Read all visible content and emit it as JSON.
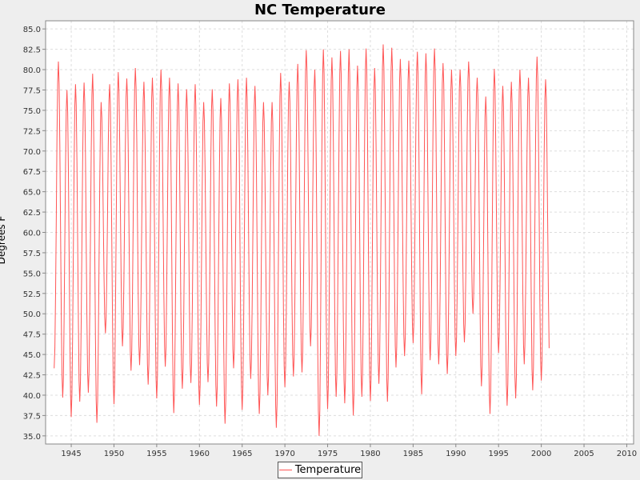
{
  "chart_data": {
    "type": "line",
    "title": "NC Temperature",
    "xlabel": "",
    "ylabel": "Degrees F",
    "xlim": [
      1942.0,
      2010.8
    ],
    "ylim": [
      34.0,
      86.0
    ],
    "x_ticks": [
      1945,
      1950,
      1955,
      1960,
      1965,
      1970,
      1975,
      1980,
      1985,
      1990,
      1995,
      2000,
      2005,
      2010
    ],
    "y_ticks": [
      35.0,
      37.5,
      40.0,
      42.5,
      45.0,
      47.5,
      50.0,
      52.5,
      55.0,
      57.5,
      60.0,
      62.5,
      65.0,
      67.5,
      70.0,
      72.5,
      75.0,
      77.5,
      80.0,
      82.5,
      85.0
    ],
    "grid": true,
    "legend_position": "bottom-center",
    "series": [
      {
        "name": "Temperature",
        "color": "#ff5555",
        "start_year": 1943,
        "peaks": [
          81.0,
          77.5,
          78.2,
          78.4,
          79.5,
          76.0,
          78.2,
          79.7,
          78.9,
          80.2,
          78.5,
          79.0,
          80.0,
          79.0,
          78.3,
          77.6,
          78.2,
          76.0,
          77.6,
          76.5,
          78.3,
          78.8,
          79.0,
          78.0,
          76.0,
          76.0,
          79.6,
          78.5,
          80.7,
          82.4,
          80.0,
          82.5,
          81.5,
          82.3,
          82.5,
          80.5,
          82.6,
          80.2,
          83.1,
          82.7,
          81.3,
          81.1,
          82.2,
          82.0,
          82.6,
          80.8,
          80.0,
          80.0,
          81.0,
          79.0,
          76.7,
          80.1,
          78.0,
          78.5,
          80.0,
          79.0,
          81.6,
          78.8
        ],
        "troughs": [
          43.3,
          39.7,
          37.3,
          39.2,
          40.3,
          36.6,
          47.6,
          38.9,
          46.0,
          43.0,
          43.7,
          41.3,
          39.6,
          43.5,
          37.8,
          40.8,
          41.5,
          38.8,
          41.6,
          38.6,
          36.5,
          43.3,
          38.2,
          42.0,
          37.7,
          40.0,
          36.0,
          41.0,
          42.3,
          42.8,
          46.0,
          35.0,
          38.3,
          39.8,
          39.0,
          37.5,
          39.8,
          39.3,
          41.4,
          39.2,
          43.4,
          44.8,
          46.4,
          40.1,
          44.3,
          43.8,
          42.6,
          44.8,
          46.5,
          50.0,
          41.1,
          37.7,
          45.2,
          38.7,
          39.6,
          43.8,
          40.6,
          41.8,
          43.4
        ]
      }
    ]
  }
}
